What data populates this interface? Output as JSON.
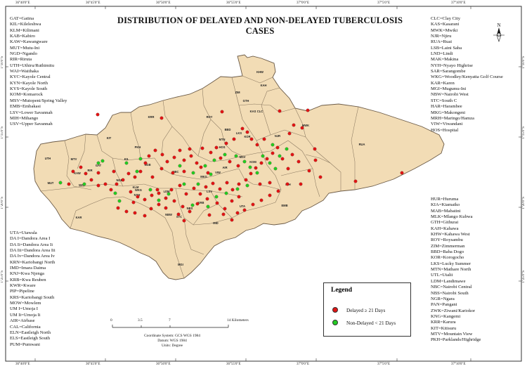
{
  "title": "DISTRIBUTION OF DELAYED AND NON-DELAYED TUBERCULOSIS CASES",
  "north_label": "N",
  "lon_ticks": [
    "36°40'0\"E",
    "36°45'0\"E",
    "36°50'0\"E",
    "36°55'0\"E",
    "37°0'0\"E",
    "37°5'0\"E",
    "37°10'0\"E"
  ],
  "lat_ticks": [
    "1°10'0\"S",
    "1°15'0\"S",
    "1°20'0\"S",
    "1°25'0\"S"
  ],
  "abbreviations_top_left": [
    "GAT=Gatina",
    "KIL=Kileleshwa",
    "KLM=Kilimani",
    "KAB=Kabiro",
    "KAW=Kawangware",
    "MUT=Mutu-Ini",
    "NGD=Ngando",
    "RIR=Riruta",
    "UTH=Uthiru/Ruthimitu",
    "WAI=Waithaka",
    "KYC=Kayole Central",
    "KYN=Kayole North",
    "KYS=Kayole South",
    "KOM=Komarock",
    "MSV=Mutopeni/Spring Valley",
    "EMB=Embakasi",
    "LSV=Lower Savannah",
    "MIH=Mihango",
    "USV=Upper Savannah"
  ],
  "abbreviations_bottom_left": [
    "UTA=Utawala",
    "DA I=Dandora Area I",
    "DA Ii=Dandora Area Ii",
    "DA Iii=Dandora Area Iii",
    "DA Iv=Dandora Area Iv",
    "KRN=Kariobangi North",
    "IMD=Imara Daima",
    "KNJ=Kwa Njenga",
    "KRB=Kwa Reuben",
    "KWR=Kware",
    "PIP=Pipeline",
    "KRS=Kariobangi South",
    "MOW=Mowlem",
    "UM I=Umoja I",
    "UM Ii=Umoja Ii",
    "AIR=Airbase",
    "CAL=California",
    "ELN=Eastleigh North",
    "ELS=Eastleigh South",
    "PUM=Pumwani"
  ],
  "abbreviations_top_right": [
    "CLC=Clay City",
    "KAS=Kasarani",
    "MWK=Mwiki",
    "NJR=Njiru",
    "RUA=Ruai",
    "LSB=Laini Saba",
    "LND=Lindi",
    "MAK=Makina",
    "NYH=Nyayo Highrise",
    "SAR=Sarangombe",
    "WKG=Woodley/Kenyatta Golf Course",
    "KAR=Karen",
    "MGI=Mugumu-Ini",
    "NBW=Nairobi West",
    "STC=South C",
    "HAR=Harambee",
    "MKG=Makongeni",
    "MRH=Maringo/Hamza",
    "VIW=Viwandani",
    "HOS=Hospital"
  ],
  "abbreviations_bottom_right": [
    "HUR=Huruma",
    "KIA=Kiamaiko",
    "MAB=Mabatini",
    "MLK=Mlango Kubwa",
    "GTH=Githurai",
    "KAH=Kahawa",
    "KHW=Kahawa West",
    "ROY=Roysambu",
    "ZIM=Zimmerman",
    "BBD=Baba Dogo",
    "KOR=Korogocho",
    "LKS=Lucky Summer",
    "MTN=Mathare North",
    "UTL=Utalii",
    "LDM=Landimawe",
    "NBC=Nairobi Central",
    "NBS=Nairobi South",
    "NGR=Ngara",
    "PAN=Pangani",
    "ZWK=Ziwani/Kariokor",
    "KNG=Kangemi",
    "KRR=Karura",
    "KIT=Kitisuru",
    "MTV=Mountain View",
    "PKH=Parklands/Highridge"
  ],
  "map_labels": [
    {
      "text": "KHW"
    },
    {
      "text": "KAH"
    },
    {
      "text": "ZIM"
    },
    {
      "text": "GTH"
    },
    {
      "text": "ROY"
    },
    {
      "text": "CLC"
    },
    {
      "text": "MWK"
    },
    {
      "text": "RUA"
    },
    {
      "text": "KRR"
    },
    {
      "text": "KIT"
    },
    {
      "text": "PKH"
    },
    {
      "text": "UTH"
    },
    {
      "text": "MTV"
    },
    {
      "text": "KIL"
    },
    {
      "text": "NGB"
    },
    {
      "text": "GAT"
    },
    {
      "text": "RIR"
    },
    {
      "text": "KAW"
    },
    {
      "text": "WAI"
    },
    {
      "text": "MUT"
    },
    {
      "text": "NGD"
    },
    {
      "text": "KLM"
    },
    {
      "text": "WKG"
    },
    {
      "text": "NYH"
    },
    {
      "text": "LDM"
    },
    {
      "text": "KAR"
    },
    {
      "text": "MGI"
    },
    {
      "text": "NBW"
    },
    {
      "text": "STC"
    },
    {
      "text": "NBS"
    },
    {
      "text": "KRB"
    },
    {
      "text": "IMD"
    },
    {
      "text": "EMB"
    },
    {
      "text": "UTA"
    },
    {
      "text": "MIH"
    },
    {
      "text": "NJR"
    },
    {
      "text": "KAS"
    },
    {
      "text": "BBD"
    },
    {
      "text": "LKS"
    },
    {
      "text": "KOR"
    },
    {
      "text": "MTN"
    },
    {
      "text": "HOS"
    },
    {
      "text": "NBC"
    },
    {
      "text": "AIR"
    },
    {
      "text": "VIW"
    },
    {
      "text": "MKG"
    },
    {
      "text": "LSV"
    },
    {
      "text": "KOM"
    },
    {
      "text": "MSV"
    }
  ],
  "legend": {
    "title": "Legend",
    "items": [
      {
        "label": "Delayed ≥ 21 Days",
        "color": "#e01414"
      },
      {
        "label": "Non-Delayed < 21 Days",
        "color": "#22cc22"
      }
    ]
  },
  "scalebar": {
    "ticks": [
      "0",
      "3.5",
      "7",
      "14 Kilometers"
    ]
  },
  "coordinate_info": [
    "Coordinate System: GCS WGS 1984",
    "Datum: WGS 1984",
    "Units: Degree"
  ],
  "colors": {
    "land": "#f2dcb5",
    "boundary": "#7a6a55",
    "delayed": "#e01414",
    "non_delayed": "#22cc22"
  }
}
